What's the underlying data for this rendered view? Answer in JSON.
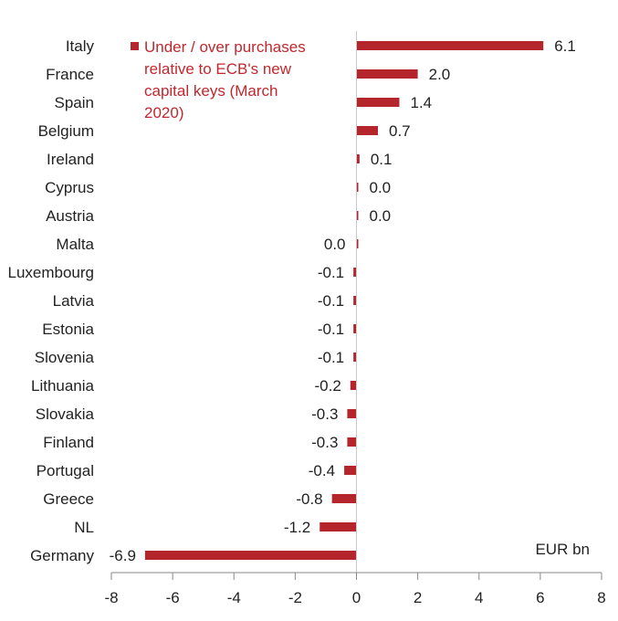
{
  "chart_data": {
    "type": "bar",
    "orientation": "horizontal",
    "categories": [
      "Italy",
      "France",
      "Spain",
      "Belgium",
      "Ireland",
      "Cyprus",
      "Austria",
      "Malta",
      "Luxembourg",
      "Latvia",
      "Estonia",
      "Slovenia",
      "Lithuania",
      "Slovakia",
      "Finland",
      "Portugal",
      "Greece",
      "NL",
      "Germany"
    ],
    "series": [
      {
        "name": "Under / over purchases relative to ECB's new capital keys (March 2020)",
        "values": [
          6.1,
          2.0,
          1.4,
          0.7,
          0.1,
          0.0,
          0.0,
          0.0,
          -0.1,
          -0.1,
          -0.1,
          -0.1,
          -0.2,
          -0.3,
          -0.3,
          -0.4,
          -0.8,
          -1.2,
          -6.9
        ],
        "labels": [
          "6.1",
          "2.0",
          "1.4",
          "0.7",
          "0.1",
          "0.0",
          "0.0",
          "0.0",
          "-0.1",
          "-0.1",
          "-0.1",
          "-0.1",
          "-0.2",
          "-0.3",
          "-0.3",
          "-0.4",
          "-0.8",
          "-1.2",
          "-6.9"
        ]
      }
    ],
    "legend_lines": [
      "Under / over purchases",
      "relative to ECB's new",
      "capital keys (March",
      "2020)"
    ],
    "unit": "EUR bn",
    "xlim": [
      -8,
      8
    ],
    "xticks": [
      "-8",
      "-6",
      "-4",
      "-2",
      "0",
      "2",
      "4",
      "6",
      "8"
    ],
    "grid": false,
    "legend_position": "top-left",
    "colors": {
      "bar": "#b5262c",
      "legend_text": "#c0282e",
      "axis": "#8a8a8a"
    }
  }
}
